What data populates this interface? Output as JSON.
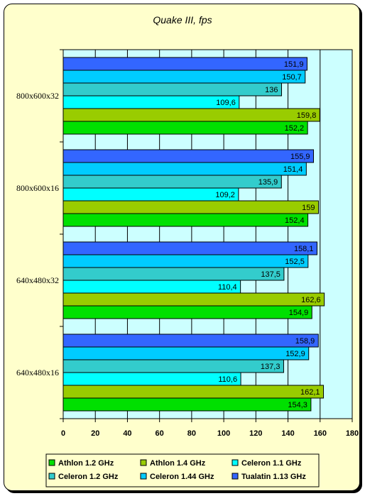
{
  "chart_data": {
    "type": "bar",
    "orientation": "horizontal",
    "title": "Quake III, fps",
    "xlabel": "",
    "ylabel": "",
    "xlim": [
      0,
      180
    ],
    "x_ticks": [
      "0",
      "20",
      "40",
      "60",
      "80",
      "100",
      "120",
      "140",
      "160",
      "180"
    ],
    "categories": [
      "800x600x32",
      "800x600x16",
      "640x480x32",
      "640x480x16"
    ],
    "series": [
      {
        "name": "Athlon 1.2 GHz",
        "color": "#00e000",
        "values": [
          152.2,
          152.4,
          154.9,
          154.3
        ],
        "labels": [
          "152,2",
          "152,4",
          "154,9",
          "154,3"
        ]
      },
      {
        "name": "Athlon 1.4 GHz",
        "color": "#99cc00",
        "values": [
          159.8,
          159,
          162.6,
          162.1
        ],
        "labels": [
          "159,8",
          "159",
          "162,6",
          "162,1"
        ]
      },
      {
        "name": "Celeron 1.1 GHz",
        "color": "#00ffff",
        "values": [
          109.6,
          109.2,
          110.4,
          110.6
        ],
        "labels": [
          "109,6",
          "109,2",
          "110,4",
          "110,6"
        ]
      },
      {
        "name": "Celeron 1.2 GHz",
        "color": "#33cccc",
        "values": [
          136,
          135.9,
          137.5,
          137.3
        ],
        "labels": [
          "136",
          "135,9",
          "137,5",
          "137,3"
        ]
      },
      {
        "name": "Celeron 1.44 GHz",
        "color": "#00ccff",
        "values": [
          150.7,
          151.4,
          152.5,
          152.9
        ],
        "labels": [
          "150,7",
          "151,4",
          "152,5",
          "152,9"
        ]
      },
      {
        "name": "Tualatin 1.13 GHz",
        "color": "#3366ff",
        "values": [
          151.9,
          155.9,
          158.1,
          158.9
        ],
        "labels": [
          "151,9",
          "155,9",
          "158,1",
          "158,9"
        ]
      }
    ],
    "plot_background": "#ccffff",
    "grid": true,
    "legend_position": "bottom"
  }
}
